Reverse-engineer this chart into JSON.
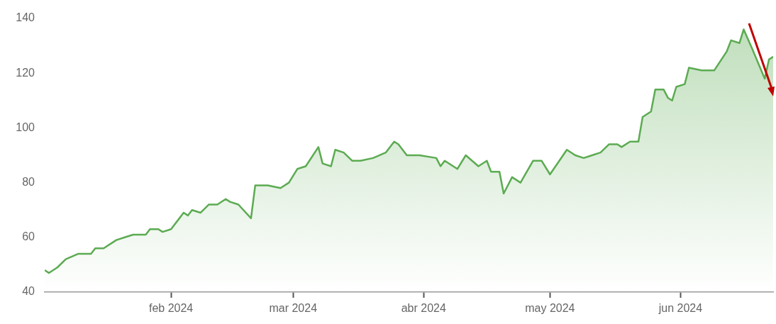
{
  "chart_data": {
    "type": "area",
    "x": [
      "2024-01-02",
      "2024-01-03",
      "2024-01-05",
      "2024-01-07",
      "2024-01-10",
      "2024-01-13",
      "2024-01-14",
      "2024-01-16",
      "2024-01-19",
      "2024-01-21",
      "2024-01-23",
      "2024-01-26",
      "2024-01-27",
      "2024-01-29",
      "2024-01-30",
      "2024-02-01",
      "2024-02-04",
      "2024-02-05",
      "2024-02-06",
      "2024-02-08",
      "2024-02-10",
      "2024-02-12",
      "2024-02-14",
      "2024-02-15",
      "2024-02-17",
      "2024-02-20",
      "2024-02-21",
      "2024-02-24",
      "2024-02-27",
      "2024-02-29",
      "2024-03-02",
      "2024-03-04",
      "2024-03-07",
      "2024-03-08",
      "2024-03-10",
      "2024-03-11",
      "2024-03-13",
      "2024-03-15",
      "2024-03-17",
      "2024-03-20",
      "2024-03-23",
      "2024-03-25",
      "2024-03-26",
      "2024-03-28",
      "2024-03-31",
      "2024-04-04",
      "2024-04-05",
      "2024-04-06",
      "2024-04-09",
      "2024-04-11",
      "2024-04-14",
      "2024-04-16",
      "2024-04-17",
      "2024-04-19",
      "2024-04-20",
      "2024-04-22",
      "2024-04-24",
      "2024-04-27",
      "2024-04-29",
      "2024-05-01",
      "2024-05-05",
      "2024-05-07",
      "2024-05-09",
      "2024-05-11",
      "2024-05-13",
      "2024-05-15",
      "2024-05-17",
      "2024-05-18",
      "2024-05-20",
      "2024-05-22",
      "2024-05-23",
      "2024-05-25",
      "2024-05-26",
      "2024-05-28",
      "2024-05-29",
      "2024-05-30",
      "2024-05-31",
      "2024-06-02",
      "2024-06-03",
      "2024-06-06",
      "2024-06-08",
      "2024-06-09",
      "2024-06-12",
      "2024-06-13",
      "2024-06-15",
      "2024-06-16",
      "2024-06-18",
      "2024-06-21",
      "2024-06-22",
      "2024-06-23"
    ],
    "series": [
      {
        "color": "#5cab52",
        "values": [
          48,
          47,
          49,
          52,
          54,
          54,
          56,
          56,
          59,
          60,
          61,
          61,
          63,
          63,
          62,
          63,
          69,
          68,
          70,
          69,
          72,
          72,
          74,
          73,
          72,
          67,
          79,
          79,
          78,
          80,
          85,
          86,
          93,
          87,
          86,
          92,
          91,
          88,
          88,
          89,
          91,
          95,
          94,
          90,
          90,
          89,
          86,
          88,
          85,
          90,
          86,
          88,
          84,
          84,
          76,
          82,
          80,
          88,
          88,
          83,
          92,
          90,
          89,
          90,
          91,
          94,
          94,
          93,
          95,
          95,
          104,
          106,
          114,
          114,
          111,
          110,
          115,
          116,
          122,
          121,
          121,
          121,
          128,
          132,
          131,
          136,
          129,
          118,
          125,
          126
        ]
      }
    ],
    "xlim": [
      "2024-01-02",
      "2024-06-23"
    ],
    "xticks": [
      {
        "value": "2024-02-01",
        "label": "feb 2024"
      },
      {
        "value": "2024-03-01",
        "label": "mar 2024"
      },
      {
        "value": "2024-04-01",
        "label": "abr 2024"
      },
      {
        "value": "2024-05-01",
        "label": "may 2024"
      },
      {
        "value": "2024-06-01",
        "label": "jun 2024"
      }
    ],
    "ylim": [
      40,
      140
    ],
    "yticks": [
      40,
      60,
      80,
      100,
      120,
      140
    ],
    "grid": false,
    "marker": "none",
    "line_style": "solid"
  }
}
